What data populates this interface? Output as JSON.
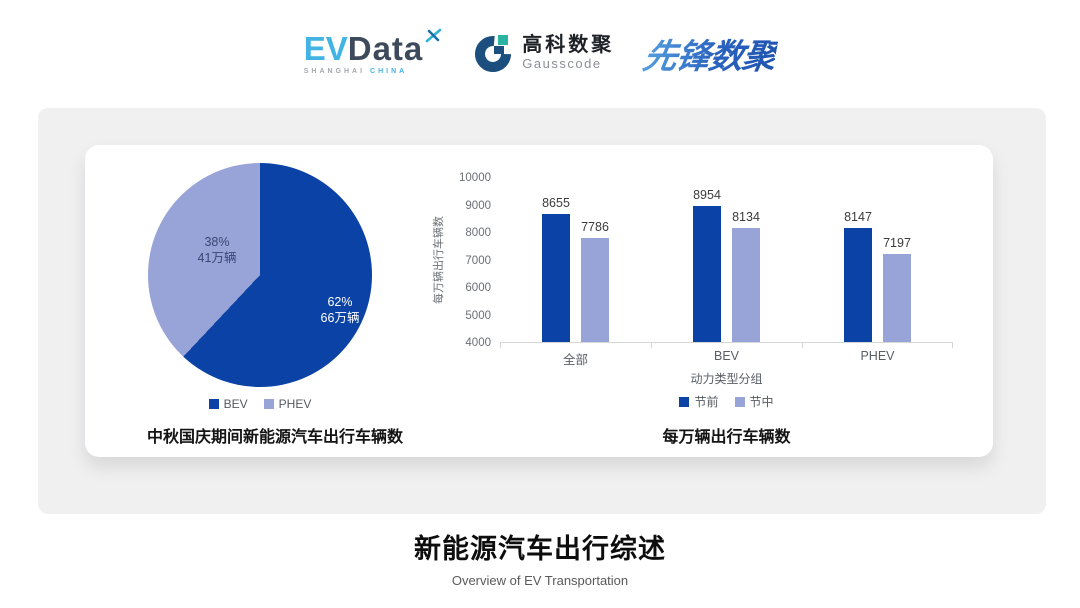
{
  "header": {
    "evdata_logo": {
      "ev": "EV",
      "data": "Data",
      "sub_left": "SHANGHAI",
      "sub_right": "CHINA"
    },
    "gausscode_logo": {
      "cn": "高科数聚",
      "en": "Gausscode"
    },
    "xianfeng_logo": {
      "text": "先锋数聚"
    }
  },
  "colors": {
    "series_dark_blue": "#0b42a5",
    "series_light_blue": "#98a3d8",
    "panel_gray": "#f0f0f1",
    "pie_label_dark_text": "#3a4670",
    "pie_label_light_text": "#ffffff"
  },
  "chart_data": [
    {
      "type": "pie",
      "title": "中秋国庆期间新能源汽车出行车辆数",
      "slices": [
        {
          "label": "BEV",
          "percent": 62,
          "pct_text": "62%",
          "amount_text": "66万辆",
          "color": "#0b42a5",
          "label_color": "#ffffff"
        },
        {
          "label": "PHEV",
          "percent": 38,
          "pct_text": "38%",
          "amount_text": "41万辆",
          "color": "#98a3d8",
          "label_color": "#3a4670"
        }
      ],
      "start_angle_deg": 0,
      "legend_position": "bottom"
    },
    {
      "type": "bar",
      "title": "每万辆出行车辆数",
      "categories": [
        "全部",
        "BEV",
        "PHEV"
      ],
      "series": [
        {
          "name": "节前",
          "color": "#0b42a5",
          "values": [
            8655,
            8954,
            8147
          ]
        },
        {
          "name": "节中",
          "color": "#98a3d8",
          "values": [
            7786,
            8134,
            7197
          ]
        }
      ],
      "xlabel": "动力类型分组",
      "ylabel": "每万辆出行车辆数",
      "ylim": [
        4000,
        10000
      ],
      "yticks": [
        10000,
        9000,
        8000,
        7000,
        6000,
        5000,
        4000
      ],
      "grid": false,
      "legend_position": "bottom"
    }
  ],
  "footer": {
    "title": "新能源汽车出行综述",
    "subtitle": "Overview of EV Transportation"
  }
}
